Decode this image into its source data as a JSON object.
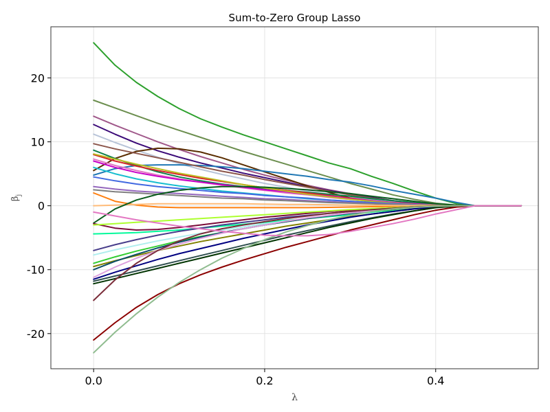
{
  "chart_data": {
    "type": "line",
    "title": "Sum-to-Zero Group Lasso",
    "xlabel": "λ",
    "ylabel_main": "β",
    "ylabel_sub": "j",
    "xlim": [
      -0.05,
      0.52
    ],
    "ylim": [
      -25.5,
      28
    ],
    "x_ticks": [
      0.0,
      0.2,
      0.4
    ],
    "x_tick_labels": [
      "0.0",
      "0.2",
      "0.4"
    ],
    "y_ticks": [
      -20,
      -10,
      0,
      10,
      20
    ],
    "y_tick_labels": [
      "-20",
      "-10",
      "0",
      "10",
      "20"
    ],
    "grid": true,
    "legend": "none",
    "x": [
      0,
      0.025,
      0.05,
      0.075,
      0.1,
      0.125,
      0.15,
      0.175,
      0.2,
      0.225,
      0.25,
      0.275,
      0.3,
      0.325,
      0.35,
      0.375,
      0.4,
      0.425,
      0.446,
      0.5
    ],
    "series": [
      {
        "color": "#2ca02c",
        "values": [
          25.5,
          22.0,
          19.3,
          17.1,
          15.2,
          13.6,
          12.3,
          11.1,
          10.0,
          8.9,
          7.8,
          6.7,
          5.8,
          4.6,
          3.5,
          2.3,
          1.2,
          0.3,
          0,
          0
        ]
      },
      {
        "color": "#6b8e4e",
        "values": [
          16.5,
          15.3,
          14.1,
          12.9,
          11.8,
          10.7,
          9.6,
          8.5,
          7.5,
          6.5,
          5.5,
          4.5,
          3.5,
          2.6,
          1.7,
          1.0,
          0.4,
          0.1,
          0,
          0
        ]
      },
      {
        "color": "#a0588a",
        "values": [
          14.0,
          12.6,
          11.3,
          10.0,
          8.8,
          7.7,
          6.7,
          5.7,
          4.8,
          4.0,
          3.2,
          2.5,
          1.9,
          1.3,
          0.8,
          0.4,
          0.15,
          0.03,
          0,
          0
        ]
      },
      {
        "color": "#3b0a78",
        "values": [
          12.7,
          11.2,
          9.8,
          8.6,
          7.6,
          6.7,
          5.9,
          5.1,
          4.4,
          3.7,
          3.0,
          2.4,
          1.8,
          1.3,
          0.8,
          0.45,
          0.15,
          0.03,
          0,
          0
        ]
      },
      {
        "color": "#b8c4d8",
        "values": [
          11.2,
          9.9,
          8.7,
          7.6,
          6.6,
          5.7,
          4.9,
          4.2,
          3.5,
          2.9,
          2.3,
          1.8,
          1.3,
          0.9,
          0.6,
          0.3,
          0.1,
          0.02,
          0,
          0
        ]
      },
      {
        "color": "#5a2d00",
        "values": [
          5.5,
          7.4,
          8.5,
          9.0,
          8.9,
          8.4,
          7.5,
          6.4,
          5.3,
          4.2,
          3.1,
          2.1,
          1.2,
          0.6,
          0.3,
          0.15,
          0.05,
          0.01,
          0,
          0
        ]
      },
      {
        "color": "#1f77b4",
        "values": [
          4.8,
          5.8,
          6.3,
          6.4,
          6.4,
          6.3,
          6.1,
          5.8,
          5.4,
          5.0,
          4.6,
          4.1,
          3.7,
          3.1,
          2.4,
          1.8,
          1.2,
          0.5,
          0,
          0
        ]
      },
      {
        "color": "#8c564b",
        "values": [
          9.7,
          8.9,
          8.2,
          7.5,
          6.8,
          6.1,
          5.4,
          4.8,
          4.1,
          3.5,
          2.9,
          2.3,
          1.7,
          1.2,
          0.8,
          0.4,
          0.15,
          0.03,
          0,
          0
        ]
      },
      {
        "color": "#10804a",
        "values": [
          8.7,
          7.4,
          6.3,
          5.3,
          4.5,
          3.9,
          3.4,
          3.0,
          2.7,
          2.4,
          2.1,
          1.8,
          1.5,
          1.1,
          0.8,
          0.5,
          0.2,
          0.05,
          0,
          0
        ]
      },
      {
        "color": "#d62728",
        "values": [
          8.0,
          7.0,
          6.2,
          5.5,
          4.9,
          4.3,
          3.8,
          3.3,
          2.8,
          2.4,
          2.0,
          1.6,
          1.2,
          0.8,
          0.5,
          0.3,
          0.1,
          0.02,
          0,
          0
        ]
      },
      {
        "color": "#e377c2",
        "values": [
          7.3,
          6.3,
          5.5,
          4.8,
          4.2,
          3.7,
          3.2,
          2.8,
          2.4,
          2.0,
          1.7,
          1.3,
          1.0,
          0.7,
          0.45,
          0.25,
          0.1,
          0.02,
          0,
          0
        ]
      },
      {
        "color": "#c800c8",
        "values": [
          7.0,
          6.0,
          5.2,
          4.6,
          4.1,
          3.7,
          3.3,
          2.9,
          2.5,
          2.2,
          1.8,
          1.5,
          1.1,
          0.8,
          0.5,
          0.3,
          0.1,
          0.02,
          0,
          0
        ]
      },
      {
        "color": "#bcbd22",
        "values": [
          8.1,
          7.3,
          6.5,
          5.8,
          5.1,
          4.5,
          3.9,
          3.3,
          2.8,
          2.3,
          1.8,
          1.4,
          1.0,
          0.7,
          0.4,
          0.2,
          0.08,
          0.02,
          0,
          0
        ]
      },
      {
        "color": "#17becf",
        "values": [
          6.0,
          5.0,
          4.2,
          3.6,
          3.1,
          2.7,
          2.3,
          2.0,
          1.7,
          1.4,
          1.1,
          0.9,
          0.7,
          0.5,
          0.3,
          0.15,
          0.05,
          0.01,
          0,
          0
        ]
      },
      {
        "color": "#4169e1",
        "values": [
          4.5,
          3.9,
          3.4,
          3.0,
          2.7,
          2.4,
          2.1,
          1.9,
          1.6,
          1.4,
          1.2,
          0.9,
          0.7,
          0.5,
          0.3,
          0.15,
          0.05,
          0.01,
          0,
          0
        ]
      },
      {
        "color": "#ff7f0e",
        "values": [
          2.0,
          0.7,
          0.1,
          -0.2,
          -0.3,
          -0.3,
          -0.3,
          -0.3,
          -0.3,
          -0.3,
          -0.3,
          -0.25,
          -0.2,
          -0.15,
          -0.1,
          -0.05,
          -0.02,
          0,
          0,
          0
        ]
      },
      {
        "color": "#9467bd",
        "values": [
          3.0,
          2.6,
          2.3,
          2.1,
          1.9,
          1.7,
          1.5,
          1.3,
          1.1,
          1.0,
          0.8,
          0.65,
          0.5,
          0.35,
          0.22,
          0.12,
          0.04,
          0.01,
          0,
          0
        ]
      },
      {
        "color": "#7f7f7f",
        "values": [
          2.5,
          2.2,
          2.0,
          1.8,
          1.6,
          1.4,
          1.2,
          1.1,
          0.9,
          0.8,
          0.65,
          0.5,
          0.4,
          0.3,
          0.18,
          0.1,
          0.04,
          0.01,
          0,
          0
        ]
      },
      {
        "color": "#ffbb78",
        "values": [
          0.0,
          0.1,
          0.2,
          0.3,
          0.3,
          0.3,
          0.3,
          0.3,
          0.25,
          0.2,
          0.2,
          0.15,
          0.1,
          0.08,
          0.05,
          0.03,
          0.01,
          0,
          0,
          0
        ]
      },
      {
        "color": "#0b5d1e",
        "values": [
          -2.7,
          -0.5,
          0.9,
          1.8,
          2.4,
          2.8,
          3.0,
          3.0,
          2.9,
          2.7,
          2.5,
          2.2,
          1.9,
          1.5,
          1.1,
          0.7,
          0.3,
          0.1,
          0,
          0
        ]
      },
      {
        "color": "#7a0c3a",
        "values": [
          -2.8,
          -3.5,
          -3.8,
          -3.7,
          -3.4,
          -3.0,
          -2.6,
          -2.2,
          -1.8,
          -1.5,
          -1.2,
          -0.9,
          -0.7,
          -0.5,
          -0.3,
          -0.15,
          -0.05,
          -0.01,
          0,
          0
        ]
      },
      {
        "color": "#adff2f",
        "values": [
          -3.0,
          -2.8,
          -2.6,
          -2.4,
          -2.2,
          -2.0,
          -1.8,
          -1.6,
          -1.4,
          -1.2,
          -1.0,
          -0.8,
          -0.6,
          -0.45,
          -0.3,
          -0.15,
          -0.05,
          -0.01,
          0,
          0
        ]
      },
      {
        "color": "#00fa9a",
        "values": [
          -4.4,
          -4.3,
          -4.2,
          -4.0,
          -3.8,
          -3.5,
          -3.2,
          -2.9,
          -2.6,
          -2.3,
          -2.0,
          -1.7,
          -1.4,
          -1.0,
          -0.7,
          -0.4,
          -0.15,
          -0.03,
          0,
          0
        ]
      },
      {
        "color": "#483d8b",
        "values": [
          -7.0,
          -6.1,
          -5.3,
          -4.6,
          -4.0,
          -3.5,
          -3.0,
          -2.6,
          -2.2,
          -1.8,
          -1.5,
          -1.2,
          -0.9,
          -0.65,
          -0.4,
          -0.2,
          -0.08,
          -0.02,
          0,
          0
        ]
      },
      {
        "color": "#afeeee",
        "values": [
          -7.7,
          -6.9,
          -6.2,
          -5.5,
          -4.9,
          -4.3,
          -3.8,
          -3.3,
          -2.8,
          -2.4,
          -2.0,
          -1.6,
          -1.2,
          -0.9,
          -0.6,
          -0.3,
          -0.1,
          -0.02,
          0,
          0
        ]
      },
      {
        "color": "#808000",
        "values": [
          -9.5,
          -8.6,
          -7.8,
          -7.0,
          -6.3,
          -5.6,
          -5.0,
          -4.4,
          -3.8,
          -3.2,
          -2.7,
          -2.2,
          -1.7,
          -1.3,
          -0.9,
          -0.5,
          -0.2,
          -0.04,
          0,
          0
        ]
      },
      {
        "color": "#32cd32",
        "values": [
          -9.0,
          -8.0,
          -7.1,
          -6.3,
          -5.5,
          -4.8,
          -4.2,
          -3.6,
          -3.0,
          -2.5,
          -2.0,
          -1.6,
          -1.2,
          -0.9,
          -0.6,
          -0.3,
          -0.1,
          -0.02,
          0,
          0
        ]
      },
      {
        "color": "#0a4d68",
        "values": [
          -10.0,
          -8.7,
          -7.6,
          -6.6,
          -5.7,
          -4.9,
          -4.2,
          -3.6,
          -3.0,
          -2.5,
          -2.0,
          -1.6,
          -1.2,
          -0.85,
          -0.55,
          -0.3,
          -0.1,
          -0.02,
          0,
          0
        ]
      },
      {
        "color": "#dda0dd",
        "values": [
          -11.2,
          -9.6,
          -8.2,
          -7.0,
          -6.0,
          -5.1,
          -4.3,
          -3.6,
          -3.0,
          -2.4,
          -1.9,
          -1.5,
          -1.1,
          -0.8,
          -0.5,
          -0.25,
          -0.08,
          -0.02,
          0,
          0
        ]
      },
      {
        "color": "#000080",
        "values": [
          -11.5,
          -10.4,
          -9.4,
          -8.4,
          -7.5,
          -6.7,
          -5.9,
          -5.1,
          -4.4,
          -3.7,
          -3.0,
          -2.4,
          -1.8,
          -1.3,
          -0.9,
          -0.5,
          -0.2,
          -0.04,
          0,
          0
        ]
      },
      {
        "color": "#2f4f4f",
        "values": [
          -11.8,
          -11.0,
          -10.2,
          -9.4,
          -8.6,
          -7.8,
          -7.0,
          -6.2,
          -5.4,
          -4.6,
          -3.9,
          -3.2,
          -2.5,
          -1.9,
          -1.3,
          -0.8,
          -0.3,
          -0.06,
          0,
          0
        ]
      },
      {
        "color": "#003300",
        "values": [
          -12.2,
          -11.4,
          -10.6,
          -9.8,
          -9.0,
          -8.2,
          -7.4,
          -6.6,
          -5.8,
          -5.0,
          -4.2,
          -3.4,
          -2.7,
          -2.0,
          -1.4,
          -0.8,
          -0.3,
          -0.06,
          0,
          0
        ]
      },
      {
        "color": "#7b2d3a",
        "values": [
          -14.8,
          -11.6,
          -9.0,
          -7.0,
          -5.5,
          -4.4,
          -3.6,
          -3.0,
          -2.5,
          -2.0,
          -1.6,
          -1.2,
          -0.9,
          -0.6,
          -0.4,
          -0.2,
          -0.07,
          -0.01,
          0,
          0
        ]
      },
      {
        "color": "#8b0000",
        "values": [
          -21.0,
          -18.3,
          -15.9,
          -13.9,
          -12.2,
          -10.8,
          -9.6,
          -8.5,
          -7.5,
          -6.5,
          -5.6,
          -4.7,
          -3.8,
          -3.0,
          -2.2,
          -1.4,
          -0.7,
          -0.2,
          0,
          0
        ]
      },
      {
        "color": "#8fbc8f",
        "values": [
          -23.0,
          -19.8,
          -16.9,
          -14.3,
          -12.0,
          -10.0,
          -8.2,
          -6.7,
          -5.3,
          -4.1,
          -3.1,
          -2.2,
          -1.5,
          -0.9,
          -0.5,
          -0.25,
          -0.08,
          -0.01,
          0,
          0
        ]
      },
      {
        "color": "#e377c2",
        "values": [
          -1.0,
          -1.6,
          -2.2,
          -2.7,
          -3.2,
          -3.6,
          -4.0,
          -4.3,
          -4.6,
          -4.7,
          -4.7,
          -4.5,
          -4.0,
          -3.4,
          -2.8,
          -2.1,
          -1.3,
          -0.6,
          0,
          0
        ]
      }
    ]
  }
}
